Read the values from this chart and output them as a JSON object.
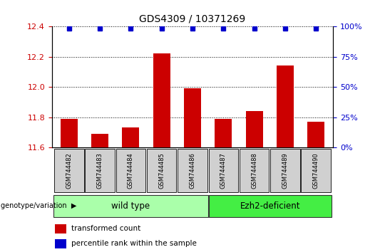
{
  "title": "GDS4309 / 10371269",
  "samples": [
    "GSM744482",
    "GSM744483",
    "GSM744484",
    "GSM744485",
    "GSM744486",
    "GSM744487",
    "GSM744488",
    "GSM744489",
    "GSM744490"
  ],
  "transformed_counts": [
    11.79,
    11.69,
    11.73,
    12.22,
    11.99,
    11.79,
    11.84,
    12.14,
    11.77
  ],
  "percentile_ranks": [
    100,
    100,
    100,
    100,
    100,
    100,
    100,
    100,
    100
  ],
  "ylim_left": [
    11.6,
    12.4
  ],
  "ylim_right": [
    0,
    100
  ],
  "yticks_left": [
    11.6,
    11.8,
    12.0,
    12.2,
    12.4
  ],
  "yticks_right": [
    0,
    25,
    50,
    75,
    100
  ],
  "bar_color": "#cc0000",
  "dot_color": "#0000cc",
  "grid_color": "#000000",
  "wild_type_label": "wild type",
  "ezh2_label": "Ezh2-deficient",
  "group_label": "genotype/variation",
  "legend_bar_label": "transformed count",
  "legend_dot_label": "percentile rank within the sample",
  "wild_type_color": "#aaffaa",
  "ezh2_color": "#44ee44",
  "sample_bg_color": "#d0d0d0",
  "figsize": [
    5.4,
    3.54
  ],
  "dpi": 100
}
